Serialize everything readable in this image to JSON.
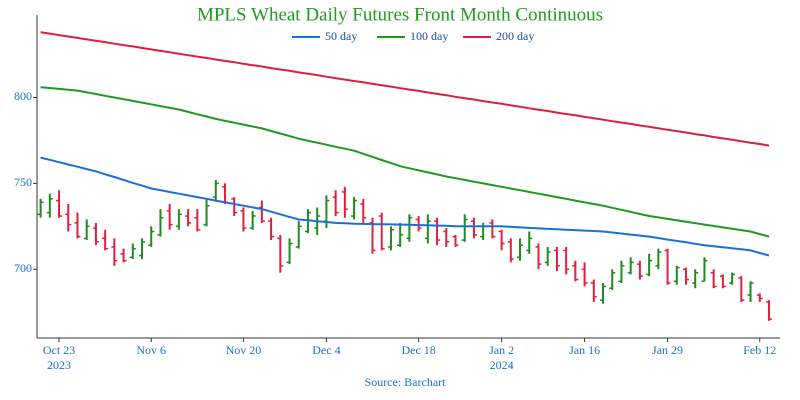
{
  "chart_data": {
    "type": "ohlc",
    "title": "MPLS Wheat Daily Futures Front Month Continuous",
    "source": "Source: Barchart",
    "categories": [
      null,
      null,
      "Oct 23\n2023",
      null,
      null,
      null,
      null,
      null,
      null,
      null,
      null,
      null,
      "Nov 6",
      null,
      null,
      null,
      null,
      null,
      null,
      null,
      null,
      null,
      "Nov 20",
      null,
      null,
      null,
      null,
      null,
      null,
      null,
      null,
      "Dec 4",
      null,
      null,
      null,
      null,
      null,
      null,
      null,
      null,
      null,
      "Dec 18",
      null,
      null,
      null,
      null,
      null,
      null,
      null,
      null,
      "Jan 2\n2024",
      null,
      null,
      null,
      null,
      null,
      null,
      null,
      null,
      "Jan 16",
      null,
      null,
      null,
      null,
      null,
      null,
      null,
      null,
      "Jan 29",
      null,
      null,
      null,
      null,
      null,
      null,
      null,
      null,
      null,
      "Feb 12",
      null
    ],
    "ohlc": {
      "open": [
        732,
        733,
        740,
        732,
        727,
        718,
        724,
        718,
        713,
        709,
        707,
        708,
        714,
        720,
        734,
        725,
        731,
        730,
        726,
        742,
        748,
        741,
        734,
        724,
        736,
        728,
        718,
        704,
        713,
        722,
        724,
        728,
        742,
        745,
        731,
        738,
        727,
        731,
        713,
        714,
        718,
        729,
        718,
        728,
        722,
        719,
        717,
        728,
        719,
        727,
        722,
        716,
        707,
        711,
        713,
        704,
        711,
        711,
        702,
        700,
        692,
        682,
        689,
        693,
        698,
        703,
        697,
        702,
        711,
        693,
        700,
        692,
        693,
        698,
        696,
        692,
        695,
        685,
        685,
        681
      ],
      "high": [
        741,
        744,
        746,
        738,
        733,
        729,
        727,
        723,
        718,
        712,
        715,
        718,
        725,
        735,
        738,
        735,
        735,
        735,
        741,
        752,
        750,
        742,
        736,
        734,
        740,
        730,
        720,
        718,
        728,
        735,
        736,
        743,
        746,
        748,
        742,
        741,
        730,
        733,
        725,
        727,
        732,
        731,
        732,
        730,
        724,
        720,
        732,
        730,
        727,
        729,
        723,
        718,
        718,
        722,
        715,
        713,
        713,
        713,
        705,
        704,
        694,
        692,
        700,
        705,
        707,
        705,
        709,
        712,
        712,
        702,
        701,
        700,
        707,
        700,
        697,
        698,
        696,
        693,
        686,
        682
      ],
      "low": [
        730,
        730,
        730,
        722,
        718,
        717,
        714,
        711,
        702,
        704,
        706,
        706,
        713,
        719,
        723,
        723,
        725,
        722,
        725,
        740,
        738,
        731,
        722,
        723,
        727,
        717,
        698,
        703,
        712,
        721,
        720,
        724,
        731,
        730,
        729,
        727,
        709,
        711,
        711,
        713,
        716,
        722,
        715,
        714,
        713,
        713,
        716,
        718,
        717,
        718,
        711,
        704,
        705,
        709,
        700,
        702,
        699,
        697,
        693,
        690,
        681,
        680,
        688,
        692,
        697,
        694,
        696,
        700,
        691,
        691,
        691,
        689,
        693,
        689,
        689,
        691,
        681,
        681,
        681,
        670
      ],
      "close": [
        739,
        741,
        731,
        726,
        719,
        725,
        716,
        712,
        705,
        705,
        712,
        716,
        722,
        730,
        726,
        732,
        727,
        723,
        737,
        750,
        739,
        733,
        724,
        731,
        728,
        719,
        702,
        715,
        725,
        733,
        731,
        740,
        733,
        735,
        740,
        730,
        711,
        712,
        723,
        720,
        730,
        724,
        728,
        717,
        716,
        714,
        729,
        720,
        725,
        719,
        715,
        706,
        714,
        718,
        703,
        710,
        702,
        700,
        694,
        692,
        684,
        690,
        698,
        702,
        704,
        696,
        705,
        710,
        692,
        701,
        694,
        698,
        705,
        690,
        690,
        697,
        682,
        692,
        683,
        671
      ]
    },
    "up_color": "#1f8a1f",
    "down_color": "#e0203c",
    "series": [
      {
        "name": "50 day",
        "color": "#1a6fdc",
        "values": [
          765,
          763.7,
          762.3,
          761,
          759.7,
          758.3,
          757,
          755.3,
          753.7,
          752,
          750.3,
          748.7,
          747,
          746,
          745,
          744,
          743,
          742,
          741,
          740,
          739,
          738,
          737,
          736,
          735,
          733.5,
          732,
          730.5,
          729,
          728.5,
          728,
          727.5,
          727,
          726.8,
          726.5,
          726.4,
          726.3,
          726.2,
          726.1,
          726,
          725.9,
          725.7,
          725.6,
          725.4,
          725.3,
          725.1,
          725,
          725,
          725,
          725,
          725,
          724.7,
          724.4,
          724.1,
          723.8,
          723.5,
          723.3,
          723,
          722.8,
          722.5,
          722.3,
          722,
          721.4,
          720.8,
          720.2,
          719.6,
          719,
          718.2,
          717.3,
          716.5,
          715.7,
          714.8,
          714,
          713.4,
          712.8,
          712.2,
          711.6,
          711,
          709.5,
          708
        ]
      },
      {
        "name": "100 day",
        "color": "#1e9a1e",
        "values": [
          806,
          805.5,
          805,
          804.5,
          804,
          803,
          802,
          801,
          800,
          799,
          798,
          797,
          796,
          795,
          794,
          793,
          791.6,
          790.2,
          788.9,
          787.5,
          786.4,
          785.3,
          784.2,
          783.1,
          782,
          780.5,
          779,
          777.5,
          776,
          774.8,
          773.7,
          772.5,
          771.3,
          770.2,
          769,
          767.2,
          765.4,
          763.6,
          761.8,
          760,
          758.8,
          757.6,
          756.4,
          755.2,
          754,
          753,
          752,
          751,
          750,
          749,
          748,
          747,
          746,
          745,
          744,
          743,
          742,
          741,
          740,
          739,
          738,
          737,
          735.8,
          734.6,
          733.4,
          732.2,
          731,
          730.2,
          729.3,
          728.5,
          727.7,
          726.8,
          726,
          725.2,
          724.4,
          723.6,
          722.8,
          722,
          720.5,
          719
        ]
      },
      {
        "name": "200 day",
        "color": "#dc1f3c",
        "values": [
          838,
          837.2,
          836.3,
          835.5,
          834.7,
          833.8,
          833,
          832.2,
          831.3,
          830.5,
          829.7,
          828.8,
          828,
          827.1,
          826.3,
          825.5,
          824.6,
          823.8,
          823,
          822.1,
          821.3,
          820.5,
          819.6,
          818.8,
          818,
          817.1,
          816.3,
          815.5,
          814.6,
          813.8,
          813,
          812.1,
          811.3,
          810.4,
          809.6,
          808.8,
          807.9,
          807.1,
          806.3,
          805.4,
          804.6,
          803.8,
          802.9,
          802.1,
          801.3,
          800.4,
          799.6,
          798.8,
          797.9,
          797.1,
          796.3,
          795.4,
          794.6,
          793.7,
          792.9,
          792.1,
          791.2,
          790.4,
          789.6,
          788.7,
          787.9,
          787.1,
          786.2,
          785.4,
          784.6,
          783.7,
          782.9,
          782.1,
          781.2,
          780.4,
          779.6,
          778.7,
          777.9,
          777,
          776.2,
          775.4,
          774.5,
          773.7,
          772.9,
          772
        ]
      }
    ],
    "ylim": [
      660,
      848
    ],
    "yticks": [
      700,
      750,
      800
    ],
    "grid": false,
    "legend": "top"
  }
}
